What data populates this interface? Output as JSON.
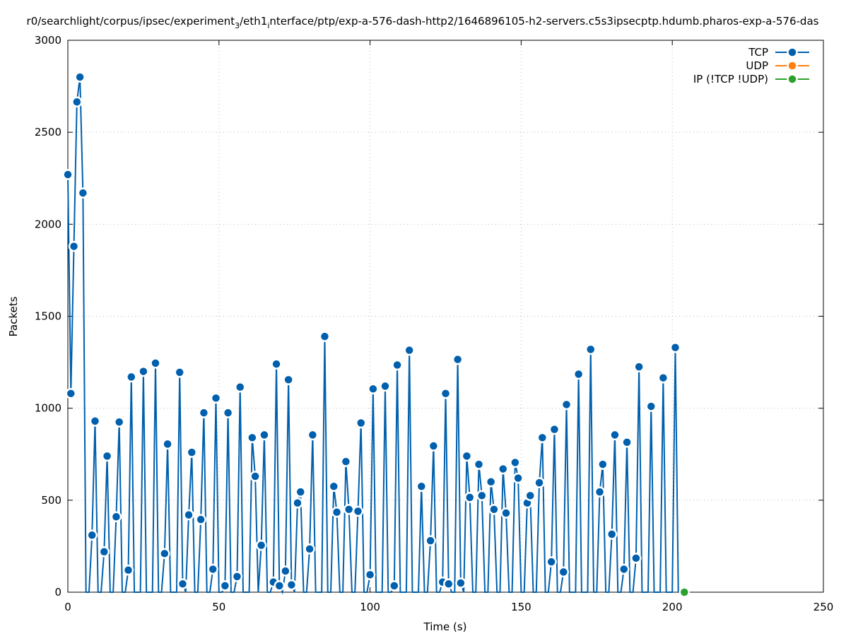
{
  "chart_data": {
    "type": "line",
    "title": "r0/searchlight/corpus/ipsec/experiment",
    "title_sub1": "3",
    "title_mid": "/eth1",
    "title_sub2": "i",
    "title_end": "nterface/ptp/exp-a-576-dash-http2/1646896105-h2-servers.c5s3ipsecptp.hdumb.pharos-exp-a-576-das",
    "xlabel": "Time (s)",
    "ylabel": "Packets",
    "xlim": [
      0,
      250
    ],
    "ylim": [
      0,
      3000
    ],
    "xticks": [
      0,
      50,
      100,
      150,
      200,
      250
    ],
    "yticks": [
      0,
      500,
      1000,
      1500,
      2000,
      2500,
      3000
    ],
    "grid": true,
    "legend_position": "top-right",
    "series": [
      {
        "name": "TCP",
        "color": "#0060ad",
        "points": [
          [
            0,
            2270
          ],
          [
            1,
            1080
          ],
          [
            2,
            1880
          ],
          [
            3,
            2665
          ],
          [
            4,
            2800
          ],
          [
            5,
            2170
          ],
          [
            6,
            0
          ],
          [
            7,
            0
          ],
          [
            8,
            310
          ],
          [
            9,
            930
          ],
          [
            10,
            0
          ],
          [
            11,
            0
          ],
          [
            12,
            220
          ],
          [
            13,
            740
          ],
          [
            14,
            0
          ],
          [
            15,
            0
          ],
          [
            16,
            410
          ],
          [
            17,
            925
          ],
          [
            18,
            0
          ],
          [
            19,
            0
          ],
          [
            20,
            120
          ],
          [
            21,
            1170
          ],
          [
            22,
            0
          ],
          [
            23,
            0
          ],
          [
            24,
            0
          ],
          [
            25,
            1200
          ],
          [
            26,
            0
          ],
          [
            27,
            0
          ],
          [
            28,
            0
          ],
          [
            29,
            1245
          ],
          [
            30,
            0
          ],
          [
            31,
            0
          ],
          [
            32,
            210
          ],
          [
            33,
            805
          ],
          [
            34,
            0
          ],
          [
            35,
            0
          ],
          [
            36,
            0
          ],
          [
            37,
            1195
          ],
          [
            38,
            45
          ],
          [
            39,
            0
          ],
          [
            40,
            420
          ],
          [
            41,
            760
          ],
          [
            42,
            0
          ],
          [
            43,
            0
          ],
          [
            44,
            395
          ],
          [
            45,
            975
          ],
          [
            46,
            0
          ],
          [
            47,
            0
          ],
          [
            48,
            125
          ],
          [
            49,
            1055
          ],
          [
            50,
            0
          ],
          [
            51,
            0
          ],
          [
            52,
            35
          ],
          [
            53,
            975
          ],
          [
            54,
            0
          ],
          [
            55,
            0
          ],
          [
            56,
            85
          ],
          [
            57,
            1115
          ],
          [
            58,
            0
          ],
          [
            59,
            0
          ],
          [
            60,
            0
          ],
          [
            61,
            840
          ],
          [
            62,
            630
          ],
          [
            63,
            0
          ],
          [
            64,
            255
          ],
          [
            65,
            855
          ],
          [
            66,
            0
          ],
          [
            67,
            0
          ],
          [
            68,
            55
          ],
          [
            69,
            1240
          ],
          [
            70,
            35
          ],
          [
            71,
            0
          ],
          [
            72,
            115
          ],
          [
            73,
            1155
          ],
          [
            74,
            40
          ],
          [
            75,
            0
          ],
          [
            76,
            485
          ],
          [
            77,
            545
          ],
          [
            78,
            0
          ],
          [
            79,
            0
          ],
          [
            80,
            235
          ],
          [
            81,
            855
          ],
          [
            82,
            0
          ],
          [
            83,
            0
          ],
          [
            84,
            0
          ],
          [
            85,
            1390
          ],
          [
            86,
            0
          ],
          [
            87,
            0
          ],
          [
            88,
            575
          ],
          [
            89,
            435
          ],
          [
            90,
            0
          ],
          [
            91,
            0
          ],
          [
            92,
            710
          ],
          [
            93,
            450
          ],
          [
            94,
            0
          ],
          [
            95,
            0
          ],
          [
            96,
            440
          ],
          [
            97,
            920
          ],
          [
            98,
            0
          ],
          [
            99,
            0
          ],
          [
            100,
            95
          ],
          [
            101,
            1105
          ],
          [
            102,
            0
          ],
          [
            103,
            0
          ],
          [
            104,
            0
          ],
          [
            105,
            1120
          ],
          [
            106,
            0
          ],
          [
            107,
            0
          ],
          [
            108,
            35
          ],
          [
            109,
            1235
          ],
          [
            110,
            0
          ],
          [
            111,
            0
          ],
          [
            112,
            0
          ],
          [
            113,
            1315
          ],
          [
            114,
            0
          ],
          [
            115,
            0
          ],
          [
            116,
            0
          ],
          [
            117,
            575
          ],
          [
            118,
            0
          ],
          [
            119,
            0
          ],
          [
            120,
            280
          ],
          [
            121,
            795
          ],
          [
            122,
            0
          ],
          [
            123,
            0
          ],
          [
            124,
            55
          ],
          [
            125,
            1080
          ],
          [
            126,
            45
          ],
          [
            127,
            0
          ],
          [
            128,
            0
          ],
          [
            129,
            1265
          ],
          [
            130,
            50
          ],
          [
            131,
            0
          ],
          [
            132,
            740
          ],
          [
            133,
            515
          ],
          [
            134,
            0
          ],
          [
            135,
            0
          ],
          [
            136,
            695
          ],
          [
            137,
            525
          ],
          [
            138,
            0
          ],
          [
            139,
            0
          ],
          [
            140,
            600
          ],
          [
            141,
            450
          ],
          [
            142,
            0
          ],
          [
            143,
            0
          ],
          [
            144,
            670
          ],
          [
            145,
            430
          ],
          [
            146,
            0
          ],
          [
            147,
            0
          ],
          [
            148,
            705
          ],
          [
            149,
            620
          ],
          [
            150,
            0
          ],
          [
            151,
            0
          ],
          [
            152,
            485
          ],
          [
            153,
            525
          ],
          [
            154,
            0
          ],
          [
            155,
            0
          ],
          [
            156,
            595
          ],
          [
            157,
            840
          ],
          [
            158,
            0
          ],
          [
            159,
            0
          ],
          [
            160,
            165
          ],
          [
            161,
            885
          ],
          [
            162,
            0
          ],
          [
            163,
            0
          ],
          [
            164,
            110
          ],
          [
            165,
            1020
          ],
          [
            166,
            0
          ],
          [
            167,
            0
          ],
          [
            168,
            0
          ],
          [
            169,
            1185
          ],
          [
            170,
            0
          ],
          [
            171,
            0
          ],
          [
            172,
            0
          ],
          [
            173,
            1320
          ],
          [
            174,
            0
          ],
          [
            175,
            0
          ],
          [
            176,
            545
          ],
          [
            177,
            695
          ],
          [
            178,
            0
          ],
          [
            179,
            0
          ],
          [
            180,
            315
          ],
          [
            181,
            855
          ],
          [
            182,
            0
          ],
          [
            183,
            0
          ],
          [
            184,
            125
          ],
          [
            185,
            815
          ],
          [
            186,
            0
          ],
          [
            187,
            0
          ],
          [
            188,
            185
          ],
          [
            189,
            1225
          ],
          [
            190,
            0
          ],
          [
            191,
            0
          ],
          [
            192,
            0
          ],
          [
            193,
            1010
          ],
          [
            194,
            0
          ],
          [
            195,
            0
          ],
          [
            196,
            0
          ],
          [
            197,
            1165
          ],
          [
            198,
            0
          ],
          [
            199,
            0
          ],
          [
            200,
            0
          ],
          [
            201,
            1330
          ],
          [
            202,
            0
          ],
          [
            203,
            0
          ]
        ]
      },
      {
        "name": "UDP",
        "color": "#ff7f0e",
        "points": []
      },
      {
        "name": "IP (!TCP  !UDP)",
        "color": "#2ca02c",
        "points": [
          [
            204,
            0
          ]
        ]
      }
    ]
  }
}
